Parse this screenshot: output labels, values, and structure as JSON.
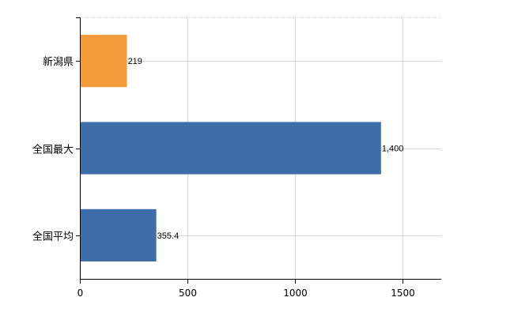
{
  "chart_data": {
    "type": "bar",
    "orientation": "horizontal",
    "categories": [
      "新潟県",
      "全国最大",
      "全国平均"
    ],
    "values": [
      219,
      1400,
      355.4
    ],
    "value_labels": [
      "219",
      "1,400",
      "355.4"
    ],
    "bar_colors": [
      "#f39b3a",
      "#3d6ea9",
      "#3d6ea9"
    ],
    "xlim": [
      0,
      1680
    ],
    "x_ticks": [
      0,
      500,
      1000,
      1500
    ],
    "grid": true,
    "legend": "none"
  }
}
